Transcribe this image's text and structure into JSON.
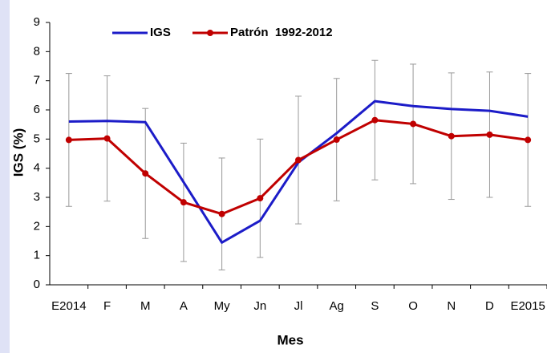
{
  "chart_data": {
    "type": "line",
    "x_label": "Mes",
    "y_label": "IGS (%)",
    "categories": [
      "E2014",
      "F",
      "M",
      "A",
      "My",
      "Jn",
      "Jl",
      "Ag",
      "S",
      "O",
      "N",
      "D",
      "E2015"
    ],
    "series": [
      {
        "name": "IGS",
        "color": "#1c1cc8",
        "marker": false,
        "values": [
          5.6,
          5.62,
          5.58,
          3.52,
          1.45,
          2.2,
          4.2,
          5.2,
          6.3,
          6.13,
          6.03,
          5.97,
          5.77
        ]
      },
      {
        "name": "Patrón  1992-2012",
        "color": "#c00000",
        "marker": true,
        "values": [
          4.97,
          5.02,
          3.82,
          2.83,
          2.43,
          2.97,
          4.28,
          4.98,
          5.65,
          5.52,
          5.1,
          5.15,
          4.97
        ],
        "errors": [
          2.28,
          2.15,
          2.23,
          2.03,
          1.92,
          2.03,
          2.19,
          2.1,
          2.05,
          2.05,
          2.17,
          2.15,
          2.28
        ]
      }
    ],
    "ylim": [
      0,
      9
    ],
    "yticks": [
      0,
      1,
      2,
      3,
      4,
      5,
      6,
      7,
      8,
      9
    ],
    "grid": false,
    "legend": "top"
  }
}
